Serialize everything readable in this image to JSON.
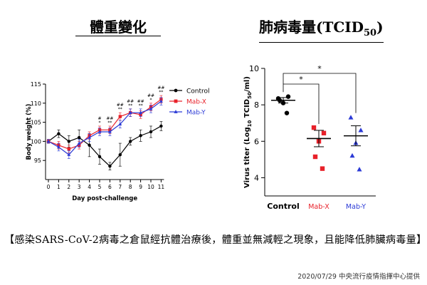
{
  "headers": {
    "left_title": "體重變化",
    "right_title_main": "肺病毒量(TCID",
    "right_title_sub": "50",
    "right_title_end": ")"
  },
  "caption": "【感染SARS-CoV-2病毒之倉鼠經抗體治療後，體重並無減輕之現象，且能降低肺臟病毒量】",
  "credit": "2020/07/29 中央流行疫情指揮中心提供",
  "chart_data": [
    {
      "type": "line",
      "xlabel": "Day post-challenge",
      "ylabel": "Body weight (%)",
      "x": [
        0,
        1,
        2,
        3,
        4,
        5,
        6,
        7,
        8,
        9,
        10,
        11
      ],
      "ylim": [
        90,
        115
      ],
      "yticks": [
        95,
        100,
        105,
        110,
        115
      ],
      "legend_position": "top-right",
      "series": [
        {
          "name": "Control",
          "color": "#000000",
          "marker": "circle",
          "values": [
            100,
            102,
            100,
            101,
            99,
            96,
            93.5,
            96.5,
            100,
            101.5,
            102.5,
            104
          ],
          "errors": [
            0.5,
            1,
            1.5,
            2,
            3,
            2,
            1,
            3,
            1,
            1.5,
            1.5,
            1.2
          ]
        },
        {
          "name": "Mab-X",
          "color": "#e8212a",
          "marker": "square",
          "values": [
            100,
            99,
            98,
            99,
            101.5,
            103,
            103,
            106.5,
            107.5,
            107,
            109,
            111
          ],
          "errors": [
            0.5,
            1,
            1,
            1,
            1,
            1,
            1,
            1,
            1,
            1,
            1,
            1
          ]
        },
        {
          "name": "Mab-Y",
          "color": "#2b3ad6",
          "marker": "triangle",
          "values": [
            100,
            98.5,
            96.5,
            99.5,
            101,
            102.5,
            102.5,
            104.5,
            107.5,
            107.5,
            108.5,
            110.5
          ],
          "errors": [
            0.5,
            1,
            1,
            1,
            1,
            1,
            1,
            1,
            1,
            1,
            1,
            1
          ]
        }
      ],
      "annotations": [
        {
          "x": 5,
          "top": "#",
          "bottom": "*"
        },
        {
          "x": 6,
          "top": "##",
          "bottom": "**"
        },
        {
          "x": 7,
          "top": "##",
          "bottom": "**"
        },
        {
          "x": 8,
          "top": "##",
          "bottom": "**"
        },
        {
          "x": 9,
          "top": "##",
          "bottom": "**"
        },
        {
          "x": 10,
          "top": "##",
          "bottom": "*"
        },
        {
          "x": 11,
          "top": "##",
          "bottom": "**"
        }
      ]
    },
    {
      "type": "scatter",
      "ylabel": "Virus titer (Log10 TCID50/ml)",
      "ylabel_parts": {
        "a": "Virus titer (Log",
        "sub1": "10",
        "b": " TCID",
        "sub2": "50",
        "c": "/ml)"
      },
      "categories": [
        "Control",
        "Mab-X",
        "Mab-Y"
      ],
      "category_colors": [
        "#000000",
        "#e8212a",
        "#2b3ad6"
      ],
      "ylim": [
        3,
        10
      ],
      "yticks": [
        4,
        6,
        8,
        10
      ],
      "series": [
        {
          "name": "Control",
          "points": [
            8.35,
            8.45,
            8.1,
            8.25,
            7.55
          ],
          "mean": 8.25,
          "sem": 0.15
        },
        {
          "name": "Mab-X",
          "points": [
            6.75,
            6.45,
            6.0,
            5.15,
            4.5
          ],
          "mean": 6.15,
          "sem": 0.45
        },
        {
          "name": "Mab-Y",
          "points": [
            7.3,
            6.6,
            5.9,
            5.2,
            4.45
          ],
          "mean": 6.3,
          "sem": 0.55
        }
      ],
      "significance": [
        {
          "from": "Control",
          "to": "Mab-X",
          "label": "*"
        },
        {
          "from": "Control",
          "to": "Mab-Y",
          "label": "*"
        }
      ]
    }
  ]
}
